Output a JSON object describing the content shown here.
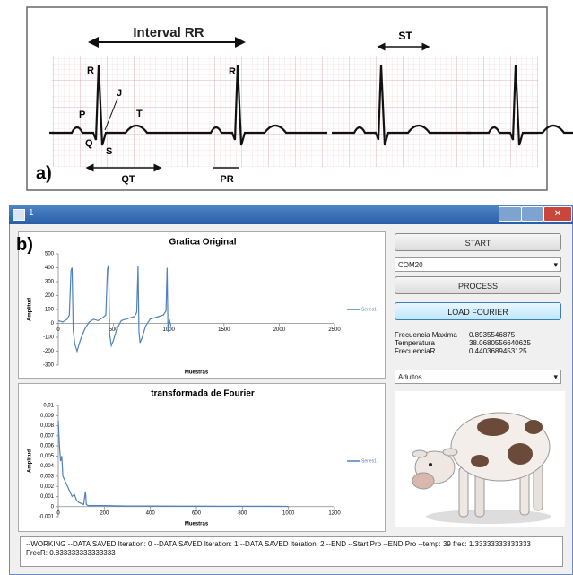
{
  "panel_a": {
    "label": "a)",
    "interval_rr": "Interval RR",
    "st": "ST",
    "qt": "QT",
    "pr": "PR",
    "waves": {
      "r1": "R",
      "r2": "R",
      "p": "P",
      "q": "Q",
      "s": "S",
      "j": "J",
      "t": "T"
    }
  },
  "window": {
    "title": "1",
    "panel_label": "b)",
    "buttons": {
      "start": "START",
      "process": "PROCESS",
      "load_fourier": "LOAD FOURIER"
    },
    "port_select": "COM20",
    "info": [
      {
        "label": "Frecuencia Maxima",
        "value": 0.8935546875
      },
      {
        "label": "Temperatura",
        "value": 38.0680556640625
      },
      {
        "label": "FrecuenciaR",
        "value": 0.4403689453125
      }
    ],
    "profile_select": "Adultos",
    "status_log": "--WORKING  --DATA SAVED Iteration: 0  --DATA SAVED Iteration: 1  --DATA SAVED Iteration: 2  --END  --Start Pro  --END Pro  --temp: 39 frec: 1.33333333333333 FrecR: 0.833333333333333"
  },
  "chart_data": [
    {
      "type": "line",
      "title": "Grafica Original",
      "x_label": "Muestras",
      "y_label": "Amplitud",
      "x": [
        0,
        40,
        80,
        100,
        115,
        125,
        135,
        150,
        170,
        200,
        240,
        280,
        320,
        360,
        400,
        430,
        445,
        455,
        465,
        480,
        500,
        530,
        570,
        610,
        650,
        690,
        710,
        722,
        730,
        740,
        760,
        790,
        830,
        870,
        910,
        950,
        975,
        985,
        993,
        1005,
        1020
      ],
      "series": [
        {
          "name": "Series1",
          "color": "#4f81bd",
          "values": [
            20,
            10,
            30,
            60,
            380,
            400,
            -50,
            -150,
            -200,
            -120,
            -40,
            10,
            30,
            20,
            40,
            60,
            390,
            420,
            -80,
            -160,
            -120,
            -40,
            20,
            30,
            40,
            50,
            80,
            410,
            -60,
            -140,
            -100,
            -20,
            30,
            40,
            50,
            60,
            90,
            400,
            -60,
            30,
            -20
          ]
        }
      ],
      "xlim": [
        0,
        2500
      ],
      "ylim": [
        -300,
        500
      ],
      "xticks": [
        0,
        500,
        1000,
        1500,
        2000,
        2500
      ],
      "yticks": [
        500,
        400,
        300,
        200,
        100,
        0,
        -100,
        -200,
        -300
      ],
      "legend": "right"
    },
    {
      "type": "line",
      "title": "transformada de Fourier",
      "x_label": "Muestras",
      "y_label": "Amplitud",
      "x": [
        0,
        5,
        10,
        15,
        20,
        30,
        40,
        50,
        60,
        70,
        80,
        90,
        100,
        110,
        118,
        122,
        130,
        150,
        200,
        300,
        400,
        500,
        600,
        700,
        800,
        900,
        1000
      ],
      "series": [
        {
          "name": "Series1",
          "color": "#4f81bd",
          "values": [
            0.0085,
            0.006,
            0.0045,
            0.005,
            0.003,
            0.0025,
            0.002,
            0.0015,
            0.001,
            0.0012,
            0.0006,
            0.0004,
            0.0003,
            0.0002,
            0.0015,
            0.0002,
            0.0001,
            0.0001,
            0.0001,
            5e-05,
            5e-05,
            4e-05,
            4e-05,
            3e-05,
            3e-05,
            3e-05,
            2e-05
          ]
        }
      ],
      "xlim": [
        0,
        1200
      ],
      "ylim": [
        -0.001,
        0.01
      ],
      "xticks": [
        0,
        200,
        400,
        600,
        800,
        1000,
        1200
      ],
      "yticks": [
        {
          "value": 0.01,
          "label": "0,01"
        },
        {
          "value": 0.009,
          "label": "0,009"
        },
        {
          "value": 0.008,
          "label": "0,008"
        },
        {
          "value": 0.007,
          "label": "0,007"
        },
        {
          "value": 0.006,
          "label": "0,006"
        },
        {
          "value": 0.005,
          "label": "0,005"
        },
        {
          "value": 0.004,
          "label": "0,004"
        },
        {
          "value": 0.003,
          "label": "0,003"
        },
        {
          "value": 0.002,
          "label": "0,002"
        },
        {
          "value": 0.001,
          "label": "0,001"
        },
        0,
        {
          "value": -0.001,
          "label": "-0,001"
        }
      ],
      "legend": "right"
    }
  ]
}
